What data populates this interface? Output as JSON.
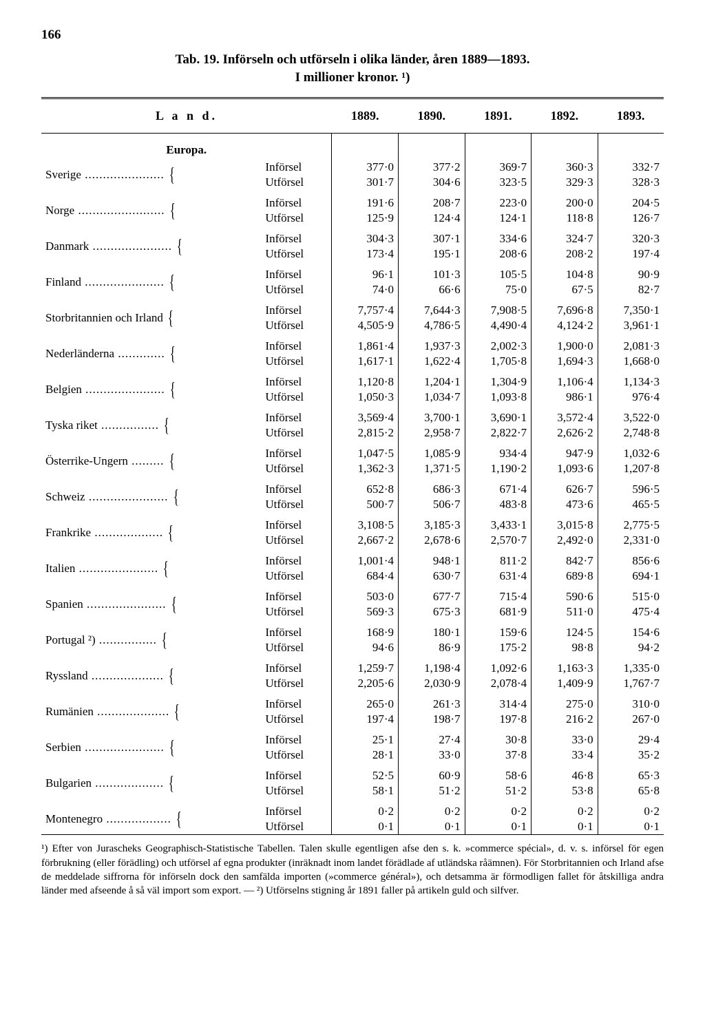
{
  "page_number": "166",
  "title_line1": "Tab. 19.  Införseln och utförseln i olika länder, åren 1889—1893.",
  "title_line2": "I millioner kronor. ¹)",
  "header": {
    "land": "L a n d.",
    "y1889": "1889.",
    "y1890": "1890.",
    "y1891": "1891.",
    "y1892": "1892.",
    "y1893": "1893."
  },
  "section": "Europa.",
  "type_in": "Införsel",
  "type_ut": "Utförsel",
  "countries": [
    {
      "name": "Sverige",
      "in": [
        "377·0",
        "377·2",
        "369·7",
        "360·3",
        "332·7"
      ],
      "ut": [
        "301·7",
        "304·6",
        "323·5",
        "329·3",
        "328·3"
      ]
    },
    {
      "name": "Norge",
      "in": [
        "191·6",
        "208·7",
        "223·0",
        "200·0",
        "204·5"
      ],
      "ut": [
        "125·9",
        "124·4",
        "124·1",
        "118·8",
        "126·7"
      ]
    },
    {
      "name": "Danmark",
      "in": [
        "304·3",
        "307·1",
        "334·6",
        "324·7",
        "320·3"
      ],
      "ut": [
        "173·4",
        "195·1",
        "208·6",
        "208·2",
        "197·4"
      ]
    },
    {
      "name": "Finland",
      "in": [
        "96·1",
        "101·3",
        "105·5",
        "104·8",
        "90·9"
      ],
      "ut": [
        "74·0",
        "66·6",
        "75·0",
        "67·5",
        "82·7"
      ]
    },
    {
      "name": "Storbritannien och Irland",
      "in": [
        "7,757·4",
        "7,644·3",
        "7,908·5",
        "7,696·8",
        "7,350·1"
      ],
      "ut": [
        "4,505·9",
        "4,786·5",
        "4,490·4",
        "4,124·2",
        "3,961·1"
      ]
    },
    {
      "name": "Nederländerna",
      "in": [
        "1,861·4",
        "1,937·3",
        "2,002·3",
        "1,900·0",
        "2,081·3"
      ],
      "ut": [
        "1,617·1",
        "1,622·4",
        "1,705·8",
        "1,694·3",
        "1,668·0"
      ]
    },
    {
      "name": "Belgien",
      "in": [
        "1,120·8",
        "1,204·1",
        "1,304·9",
        "1,106·4",
        "1,134·3"
      ],
      "ut": [
        "1,050·3",
        "1,034·7",
        "1,093·8",
        "986·1",
        "976·4"
      ]
    },
    {
      "name": "Tyska riket",
      "in": [
        "3,569·4",
        "3,700·1",
        "3,690·1",
        "3,572·4",
        "3,522·0"
      ],
      "ut": [
        "2,815·2",
        "2,958·7",
        "2,822·7",
        "2,626·2",
        "2,748·8"
      ]
    },
    {
      "name": "Österrike-Ungern",
      "in": [
        "1,047·5",
        "1,085·9",
        "934·4",
        "947·9",
        "1,032·6"
      ],
      "ut": [
        "1,362·3",
        "1,371·5",
        "1,190·2",
        "1,093·6",
        "1,207·8"
      ]
    },
    {
      "name": "Schweiz",
      "in": [
        "652·8",
        "686·3",
        "671·4",
        "626·7",
        "596·5"
      ],
      "ut": [
        "500·7",
        "506·7",
        "483·8",
        "473·6",
        "465·5"
      ]
    },
    {
      "name": "Frankrike",
      "in": [
        "3,108·5",
        "3,185·3",
        "3,433·1",
        "3,015·8",
        "2,775·5"
      ],
      "ut": [
        "2,667·2",
        "2,678·6",
        "2,570·7",
        "2,492·0",
        "2,331·0"
      ]
    },
    {
      "name": "Italien",
      "in": [
        "1,001·4",
        "948·1",
        "811·2",
        "842·7",
        "856·6"
      ],
      "ut": [
        "684·4",
        "630·7",
        "631·4",
        "689·8",
        "694·1"
      ]
    },
    {
      "name": "Spanien",
      "in": [
        "503·0",
        "677·7",
        "715·4",
        "590·6",
        "515·0"
      ],
      "ut": [
        "569·3",
        "675·3",
        "681·9",
        "511·0",
        "475·4"
      ]
    },
    {
      "name": "Portugal ²)",
      "in": [
        "168·9",
        "180·1",
        "159·6",
        "124·5",
        "154·6"
      ],
      "ut": [
        "94·6",
        "86·9",
        "175·2",
        "98·8",
        "94·2"
      ]
    },
    {
      "name": "Ryssland",
      "in": [
        "1,259·7",
        "1,198·4",
        "1,092·6",
        "1,163·3",
        "1,335·0"
      ],
      "ut": [
        "2,205·6",
        "2,030·9",
        "2,078·4",
        "1,409·9",
        "1,767·7"
      ]
    },
    {
      "name": "Rumänien",
      "in": [
        "265·0",
        "261·3",
        "314·4",
        "275·0",
        "310·0"
      ],
      "ut": [
        "197·4",
        "198·7",
        "197·8",
        "216·2",
        "267·0"
      ]
    },
    {
      "name": "Serbien",
      "in": [
        "25·1",
        "27·4",
        "30·8",
        "33·0",
        "29·4"
      ],
      "ut": [
        "28·1",
        "33·0",
        "37·8",
        "33·4",
        "35·2"
      ]
    },
    {
      "name": "Bulgarien",
      "in": [
        "52·5",
        "60·9",
        "58·6",
        "46·8",
        "65·3"
      ],
      "ut": [
        "58·1",
        "51·2",
        "51·2",
        "53·8",
        "65·8"
      ]
    },
    {
      "name": "Montenegro",
      "in": [
        "0·2",
        "0·2",
        "0·2",
        "0·2",
        "0·2"
      ],
      "ut": [
        "0·1",
        "0·1",
        "0·1",
        "0·1",
        "0·1"
      ]
    }
  ],
  "footnote": "¹) Efter von Jurascheks Geographisch-Statistische Tabellen. Talen skulle egentligen afse den s. k. »commerce spécial», d. v. s. införsel för egen förbrukning (eller förädling) och utförsel af egna produkter (inräknadt inom landet förädlade af utländska råämnen). För Storbritannien och Irland afse de meddelade siffrorna för införseln dock den samfälda importen (»commerce général»), och detsamma är förmodligen fallet för åtskilliga andra länder med afseende å så väl import som export. — ²) Utförselns stigning år 1891 faller på artikeln guld och silfver."
}
